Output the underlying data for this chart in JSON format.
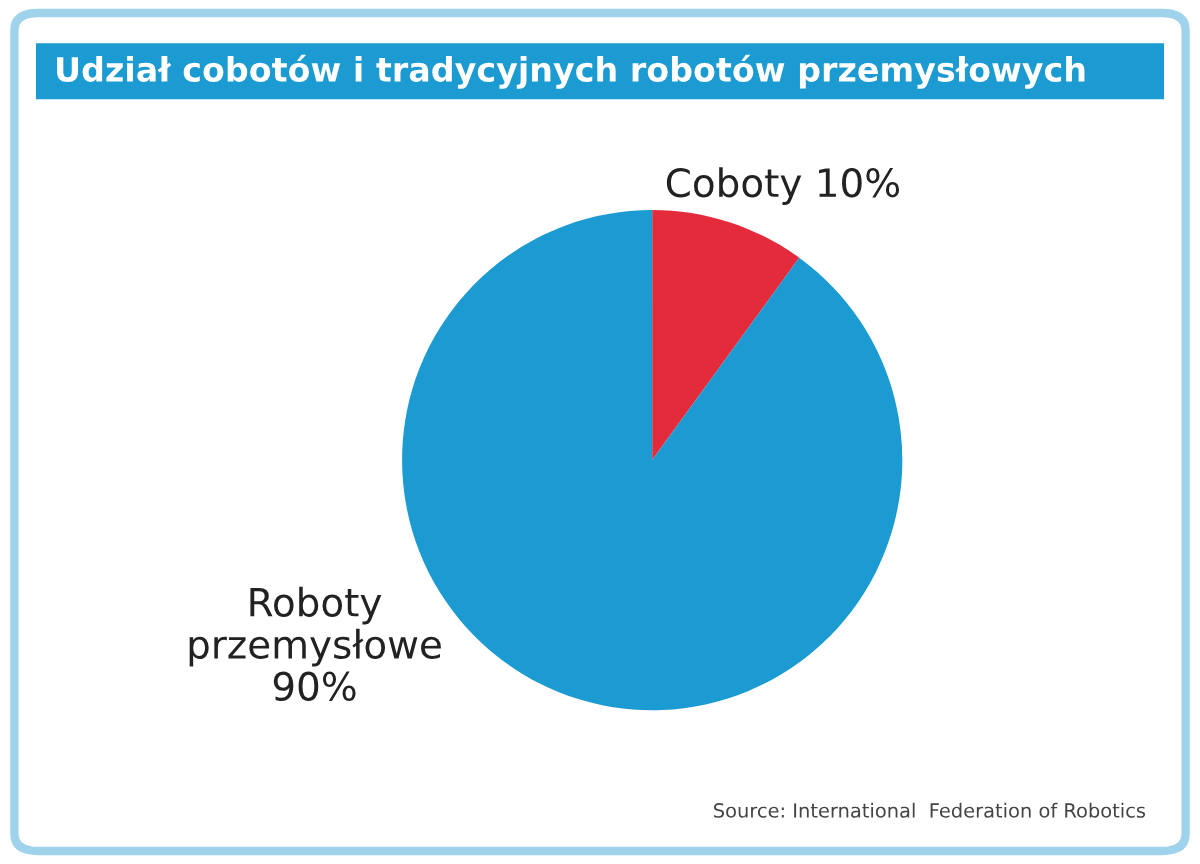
{
  "chart_data": {
    "type": "pie",
    "title": "Udział cobotów i tradycyjnych robotów przemysłowych",
    "categories": [
      "Coboty",
      "Roboty przemysłowe"
    ],
    "values": [
      10,
      90
    ],
    "value_labels": [
      "10%",
      "90%"
    ],
    "colors": [
      "#e32b3b",
      "#1b9bd1"
    ],
    "annotations": [
      "Source: International  Federation of Robotics"
    ]
  }
}
